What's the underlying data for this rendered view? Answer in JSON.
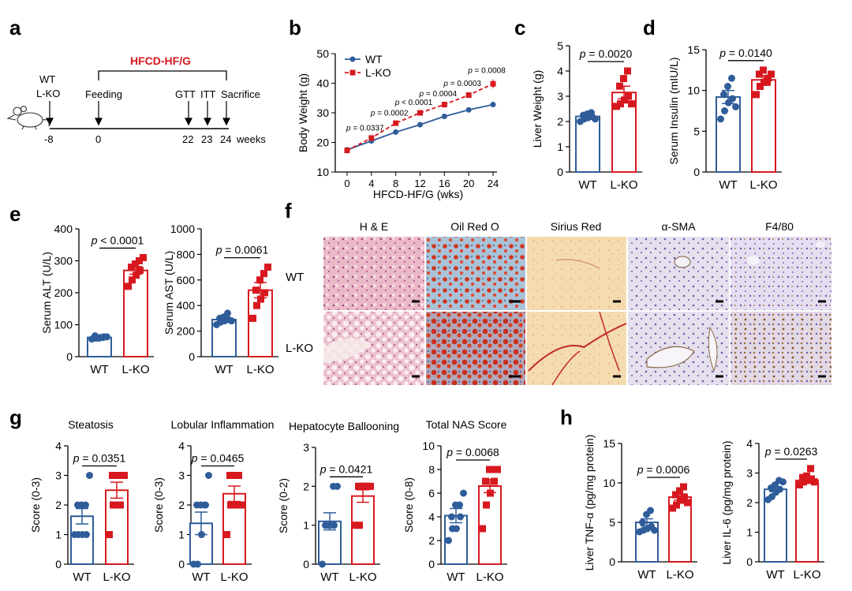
{
  "colors": {
    "wt": "#2f5d9a",
    "ko": "#d7191f",
    "hfcd": "#d7191f",
    "axis": "#000000"
  },
  "panel_labels": [
    "a",
    "b",
    "c",
    "d",
    "e",
    "f",
    "g",
    "h"
  ],
  "panel_a": {
    "group_label_1": "WT",
    "group_label_2": "L-KO",
    "diet_label": "HFCD-HF/G",
    "events": [
      "Feeding",
      "GTT",
      "ITT",
      "Sacrifice"
    ],
    "ticks": [
      "-8",
      "0",
      "22",
      "23",
      "24"
    ],
    "unit": "weeks",
    "icon": "mouse-icon"
  },
  "panel_f": {
    "columns": [
      "H & E",
      "Oil Red O",
      "Sirius Red",
      "α-SMA",
      "F4/80"
    ],
    "rows": [
      "WT",
      "L-KO"
    ]
  },
  "chart_data": [
    {
      "id": "b",
      "type": "line",
      "x": [
        0,
        4,
        8,
        12,
        16,
        20,
        24
      ],
      "series": [
        {
          "name": "WT",
          "values": [
            17.5,
            20.5,
            23.5,
            26,
            28.8,
            31,
            32.8
          ],
          "sem": [
            0.3,
            0.3,
            0.4,
            0.4,
            0.5,
            0.5,
            0.6
          ]
        },
        {
          "name": "L-KO",
          "values": [
            17.3,
            21.5,
            26.5,
            30,
            32.8,
            36,
            39.8
          ],
          "sem": [
            0.3,
            0.4,
            0.5,
            0.6,
            0.7,
            0.9,
            1.5
          ]
        }
      ],
      "xlabel": "HFCD-HF/G (wks)",
      "ylabel": "Body Weight (g)",
      "xlim": [
        0,
        24
      ],
      "ylim": [
        10,
        50
      ],
      "xticks": [
        0,
        4,
        8,
        12,
        16,
        20,
        24
      ],
      "yticks": [
        10,
        20,
        30,
        40,
        50
      ],
      "annotations": [
        {
          "x": 4,
          "text": "p = 0.0337"
        },
        {
          "x": 8,
          "text": "p = 0.0002"
        },
        {
          "x": 12,
          "text": "p < 0.0001"
        },
        {
          "x": 16,
          "text": "p = 0.0004"
        },
        {
          "x": 20,
          "text": "p = 0.0003"
        },
        {
          "x": 24,
          "text": "p = 0.0008"
        }
      ],
      "legend": "top-left"
    },
    {
      "id": "c",
      "type": "bar",
      "categories": [
        "WT",
        "L-KO"
      ],
      "values": [
        2.2,
        3.15
      ],
      "sem": [
        0.08,
        0.25
      ],
      "points": [
        [
          2.0,
          2.1,
          2.15,
          2.2,
          2.25,
          2.3,
          2.35,
          2.1
        ],
        [
          2.6,
          2.7,
          2.85,
          3.0,
          3.4,
          3.7,
          4.0,
          2.7
        ]
      ],
      "ylabel": "Liver Weight (g)",
      "ylim": [
        0,
        5
      ],
      "yticks": [
        0,
        1,
        2,
        3,
        4,
        5
      ],
      "pvalue": "p = 0.0020"
    },
    {
      "id": "d",
      "type": "bar",
      "categories": [
        "WT",
        "L-KO"
      ],
      "values": [
        9.2,
        11.3
      ],
      "sem": [
        0.8,
        0.5
      ],
      "points": [
        [
          6.5,
          7.5,
          8.5,
          9.0,
          9.5,
          10.5,
          11.5,
          8.0
        ],
        [
          9.5,
          10.5,
          11.0,
          11.5,
          12.0,
          12.5,
          11.0,
          12.0
        ]
      ],
      "ylabel": "Serum Insulin (mIU/L)",
      "ylim": [
        0,
        15
      ],
      "yticks": [
        0,
        5,
        10,
        15
      ],
      "pvalue": "p = 0.0140"
    },
    {
      "id": "e1",
      "type": "bar",
      "categories": [
        "WT",
        "L-KO"
      ],
      "values": [
        60,
        270
      ],
      "sem": [
        3,
        12
      ],
      "points": [
        [
          55,
          58,
          60,
          62,
          65,
          58,
          60,
          62
        ],
        [
          220,
          240,
          255,
          270,
          280,
          290,
          300,
          310
        ]
      ],
      "ylabel": "Serum ALT (U/L)",
      "ylim": [
        0,
        400
      ],
      "yticks": [
        0,
        100,
        200,
        300,
        400
      ],
      "pvalue": "p < 0.0001"
    },
    {
      "id": "e2",
      "type": "bar",
      "categories": [
        "WT",
        "L-KO"
      ],
      "values": [
        290,
        520
      ],
      "sem": [
        15,
        60
      ],
      "points": [
        [
          250,
          270,
          280,
          290,
          300,
          310,
          340,
          280
        ],
        [
          300,
          400,
          450,
          500,
          520,
          600,
          650,
          700
        ]
      ],
      "ylabel": "Serum AST (U/L)",
      "ylim": [
        0,
        1000
      ],
      "yticks": [
        0,
        200,
        400,
        600,
        800,
        1000
      ],
      "pvalue": "p = 0.0061"
    },
    {
      "id": "g1",
      "type": "bar",
      "title": "Steatosis",
      "categories": [
        "WT",
        "L-KO"
      ],
      "values": [
        1.62,
        2.5
      ],
      "sem": [
        0.26,
        0.27
      ],
      "points": [
        [
          1,
          1,
          1,
          1,
          2,
          2,
          2,
          3
        ],
        [
          1,
          2,
          3,
          3,
          3,
          3,
          2,
          3
        ]
      ],
      "ylabel": "Score (0-3)",
      "ylim": [
        0,
        4
      ],
      "yticks": [
        0,
        1,
        2,
        3,
        4
      ],
      "pvalue": "p = 0.0351"
    },
    {
      "id": "g2",
      "type": "bar",
      "title": "Lobular Inflammation",
      "categories": [
        "WT",
        "L-KO"
      ],
      "values": [
        1.38,
        2.38
      ],
      "sem": [
        0.38,
        0.26
      ],
      "points": [
        [
          0,
          0,
          1,
          2,
          2,
          2,
          2,
          3
        ],
        [
          1,
          2,
          2,
          3,
          3,
          3,
          3,
          2
        ]
      ],
      "ylabel": "Score (0-3)",
      "ylim": [
        0,
        4
      ],
      "yticks": [
        0,
        1,
        2,
        3,
        4
      ],
      "pvalue": "p = 0.0465"
    },
    {
      "id": "g3",
      "type": "bar",
      "title": "Hepatocyte Ballooning",
      "categories": [
        "WT",
        "L-KO"
      ],
      "values": [
        1.1,
        1.75
      ],
      "sem": [
        0.22,
        0.16
      ],
      "points": [
        [
          0,
          1,
          1,
          1,
          1,
          1,
          2,
          2
        ],
        [
          1,
          1,
          2,
          2,
          2,
          2,
          2,
          2
        ]
      ],
      "ylabel": "Score (0-2)",
      "ylim": [
        0,
        3
      ],
      "yticks": [
        0,
        1,
        2,
        3
      ],
      "pvalue": "p = 0.0421"
    },
    {
      "id": "g4",
      "type": "bar",
      "title": "Total NAS Score",
      "categories": [
        "WT",
        "L-KO"
      ],
      "values": [
        4.1,
        6.6
      ],
      "sem": [
        0.6,
        0.55
      ],
      "points": [
        [
          2,
          3,
          3,
          4,
          4,
          5,
          5,
          6
        ],
        [
          3,
          5,
          6,
          7,
          7,
          8,
          8,
          8
        ]
      ],
      "ylabel": "Score (0-8)",
      "ylim": [
        0,
        10
      ],
      "yticks": [
        0,
        2,
        4,
        6,
        8,
        10
      ],
      "pvalue": "p = 0.0068"
    },
    {
      "id": "h1",
      "type": "bar",
      "categories": [
        "WT",
        "L-KO"
      ],
      "values": [
        5.0,
        8.2
      ],
      "sem": [
        0.45,
        0.4
      ],
      "points": [
        [
          3.8,
          4.0,
          4.2,
          4.5,
          5.0,
          6.0,
          6.5,
          4.0
        ],
        [
          6.8,
          7.2,
          7.8,
          8.2,
          8.5,
          9.0,
          9.5,
          7.5
        ]
      ],
      "ylabel": "Liver TNF-α (pg/mg protein)",
      "ylim": [
        0,
        15
      ],
      "yticks": [
        0,
        5,
        10,
        15
      ],
      "pvalue": "p = 0.0006"
    },
    {
      "id": "h2",
      "type": "bar",
      "categories": [
        "WT",
        "L-KO"
      ],
      "values": [
        2.45,
        2.75
      ],
      "sem": [
        0.08,
        0.05
      ],
      "points": [
        [
          2.1,
          2.2,
          2.35,
          2.45,
          2.5,
          2.6,
          2.75,
          2.7
        ],
        [
          2.6,
          2.7,
          2.75,
          2.8,
          2.85,
          2.9,
          3.15,
          2.7
        ]
      ],
      "ylabel": "Liver IL-6 (pg/mg protein)",
      "ylim": [
        0,
        4
      ],
      "yticks": [
        0,
        1,
        2,
        3,
        4
      ],
      "pvalue": "p = 0.0263"
    }
  ]
}
